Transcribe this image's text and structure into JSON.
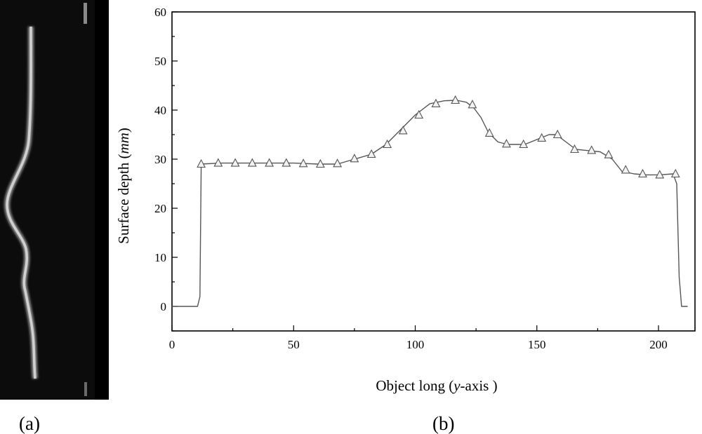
{
  "panels": {
    "a_label": "(a)",
    "b_label": "(b)"
  },
  "chart_data": {
    "type": "line",
    "xlabel": "Object long (y-axis )",
    "xlabel_parts": [
      "Object long (",
      "y",
      "-axis )"
    ],
    "ylabel": "Surface depth (mm)",
    "ylabel_parts": [
      "Surface depth (",
      "mm",
      ")"
    ],
    "xlim": [
      0,
      215
    ],
    "ylim": [
      -5,
      60
    ],
    "xticks": [
      0,
      50,
      100,
      150,
      200
    ],
    "yticks": [
      0,
      10,
      20,
      30,
      40,
      50,
      60
    ],
    "grid": false,
    "legend": "none",
    "series": [
      {
        "marker": "open-triangle",
        "line_color": "#555555",
        "line": [
          [
            0,
            0
          ],
          [
            10.5,
            0
          ],
          [
            11.5,
            2
          ],
          [
            12,
            29
          ],
          [
            20,
            29.2
          ],
          [
            30,
            29.2
          ],
          [
            40,
            29.2
          ],
          [
            50,
            29.2
          ],
          [
            60,
            29
          ],
          [
            68,
            29
          ],
          [
            75,
            30
          ],
          [
            82,
            31
          ],
          [
            88,
            33
          ],
          [
            94,
            36
          ],
          [
            100,
            39
          ],
          [
            106,
            41.3
          ],
          [
            112,
            41.9
          ],
          [
            117,
            42
          ],
          [
            121,
            41.6
          ],
          [
            124,
            40.5
          ],
          [
            127,
            38.5
          ],
          [
            130,
            35.5
          ],
          [
            134,
            33.5
          ],
          [
            138,
            33
          ],
          [
            145,
            33
          ],
          [
            150,
            34
          ],
          [
            155,
            35
          ],
          [
            158,
            35
          ],
          [
            162,
            33.5
          ],
          [
            166,
            32
          ],
          [
            170,
            31.8
          ],
          [
            176,
            31.5
          ],
          [
            181,
            30
          ],
          [
            185,
            27.5
          ],
          [
            190,
            27
          ],
          [
            195,
            26.8
          ],
          [
            200,
            26.8
          ],
          [
            206,
            27
          ],
          [
            207.5,
            25
          ],
          [
            208.5,
            6
          ],
          [
            209.5,
            0
          ],
          [
            212,
            0
          ]
        ],
        "markers": [
          [
            12,
            29
          ],
          [
            19,
            29.2
          ],
          [
            26,
            29.2
          ],
          [
            33,
            29.2
          ],
          [
            40,
            29.2
          ],
          [
            47,
            29.2
          ],
          [
            54,
            29.1
          ],
          [
            61,
            29
          ],
          [
            68,
            29.1
          ],
          [
            75,
            30.1
          ],
          [
            82,
            31
          ],
          [
            88.5,
            33
          ],
          [
            95,
            35.8
          ],
          [
            101.5,
            39
          ],
          [
            108.5,
            41.3
          ],
          [
            116.5,
            42
          ],
          [
            123.5,
            41.1
          ],
          [
            130.5,
            35.3
          ],
          [
            137.5,
            33.1
          ],
          [
            144.5,
            33
          ],
          [
            152,
            34.3
          ],
          [
            158.5,
            35
          ],
          [
            165.5,
            32
          ],
          [
            172.5,
            31.8
          ],
          [
            179.5,
            30.9
          ],
          [
            186.5,
            27.8
          ],
          [
            193.5,
            27
          ],
          [
            200.5,
            26.8
          ],
          [
            207,
            27
          ]
        ]
      }
    ]
  }
}
